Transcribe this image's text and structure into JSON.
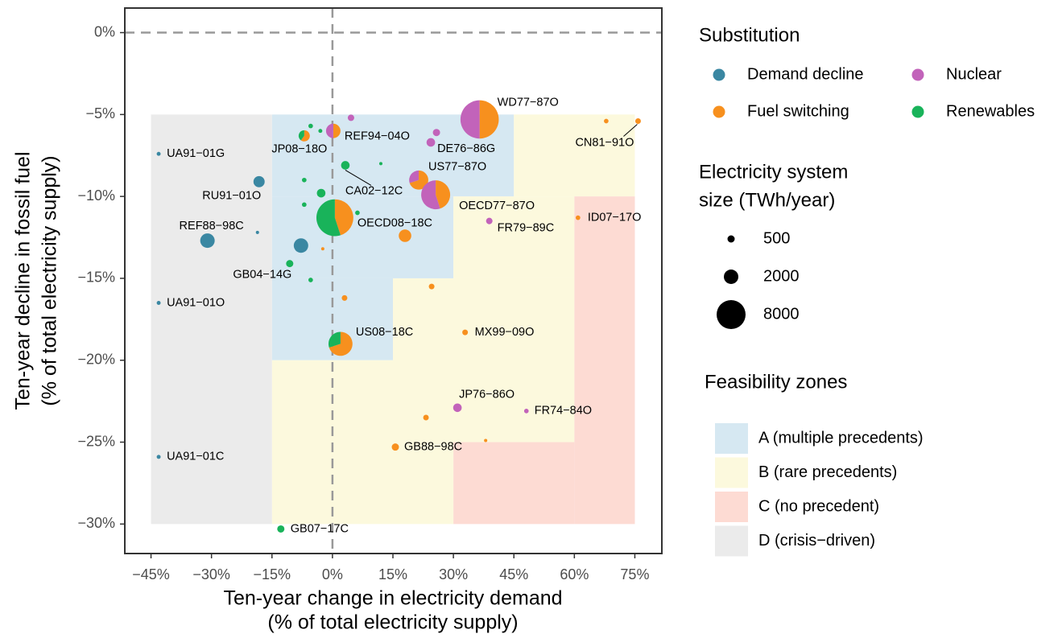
{
  "chart_data": {
    "type": "scatter",
    "x_label": [
      "Ten-year change in electricity demand",
      "(% of total electricity supply)"
    ],
    "y_label": [
      "Ten-year decline in fossil fuel",
      "(% of total electricity supply)"
    ],
    "xlim": [
      -51.5,
      81.7
    ],
    "ylim": [
      -31.8,
      1.5
    ],
    "xticks": [
      {
        "value": -45,
        "label": "−45%"
      },
      {
        "value": -30,
        "label": "−30%"
      },
      {
        "value": -15,
        "label": "−15%"
      },
      {
        "value": 0,
        "label": "0%"
      },
      {
        "value": 15,
        "label": "15%"
      },
      {
        "value": 30,
        "label": "30%"
      },
      {
        "value": 45,
        "label": "45%"
      },
      {
        "value": 60,
        "label": "60%"
      },
      {
        "value": 75,
        "label": "75%"
      }
    ],
    "yticks": [
      {
        "value": 0,
        "label": "0%"
      },
      {
        "value": -5,
        "label": "−5%"
      },
      {
        "value": -10,
        "label": "−10%"
      },
      {
        "value": -15,
        "label": "−15%"
      },
      {
        "value": -20,
        "label": "−20%"
      },
      {
        "value": -25,
        "label": "−25%"
      },
      {
        "value": -30,
        "label": "−30%"
      }
    ],
    "substitution_title": "Substitution",
    "substitution": [
      {
        "name": "Demand decline",
        "color": "#3a87a2"
      },
      {
        "name": "Fuel switching",
        "color": "#f7901e"
      },
      {
        "name": "Nuclear",
        "color": "#c263ba"
      },
      {
        "name": "Renewables",
        "color": "#19b35a"
      }
    ],
    "size_title": [
      "Electricity system",
      "size (TWh/year)"
    ],
    "size_legend": [
      500,
      2000,
      8000
    ],
    "zones_title": "Feasibility zones",
    "zones": [
      {
        "name": "A (multiple precedents)",
        "color": "#d6e8f2",
        "rects": [
          [
            -15,
            45,
            -10,
            -5
          ],
          [
            -15,
            30,
            -15,
            -10
          ],
          [
            -15,
            15,
            -20,
            -15
          ]
        ]
      },
      {
        "name": "B (rare precedents)",
        "color": "#fcf9dd",
        "rects": [
          [
            45,
            75,
            -10,
            -5
          ],
          [
            30,
            60,
            -15,
            -10
          ],
          [
            15,
            60,
            -25,
            -15
          ],
          [
            -15,
            30,
            -30,
            -20
          ]
        ]
      },
      {
        "name": "C (no precedent)",
        "color": "#fddbd3",
        "rects": [
          [
            60,
            75,
            -30,
            -10
          ],
          [
            30,
            60,
            -30,
            -25
          ]
        ]
      },
      {
        "name": "D (crisis−driven)",
        "color": "#ebebeb",
        "rects": [
          [
            -45,
            -15,
            -30,
            -5
          ]
        ]
      }
    ],
    "points": [
      {
        "label": "UA91−01G",
        "x": -43.1,
        "y": -7.4,
        "size": 150,
        "shares": [
          1,
          0,
          0,
          0
        ]
      },
      {
        "label": "UA91−01O",
        "x": -43.1,
        "y": -16.5,
        "size": 150,
        "shares": [
          1,
          0,
          0,
          0
        ]
      },
      {
        "label": "UA91−01C",
        "x": -43.1,
        "y": -25.9,
        "size": 150,
        "shares": [
          1,
          0,
          0,
          0
        ]
      },
      {
        "label": "RU91−01O",
        "x": -18.2,
        "y": -9.1,
        "size": 1200,
        "shares": [
          1,
          0,
          0,
          0
        ]
      },
      {
        "label": "REF88−98C",
        "x": -31,
        "y": -12.7,
        "size": 2000,
        "shares": [
          1,
          0,
          0,
          0
        ]
      },
      {
        "label": null,
        "x": -18.6,
        "y": -12.2,
        "size": 100,
        "shares": [
          1,
          0,
          0,
          0
        ]
      },
      {
        "label": null,
        "x": -7.8,
        "y": -13.0,
        "size": 2000,
        "shares": [
          1,
          0,
          0,
          0
        ]
      },
      {
        "label": null,
        "x": -5.4,
        "y": -5.7,
        "size": 200,
        "shares": [
          0,
          0,
          0,
          1
        ]
      },
      {
        "label": null,
        "x": -3.0,
        "y": -6.0,
        "size": 150,
        "shares": [
          0,
          0,
          0,
          1
        ]
      },
      {
        "label": "JP08−18O",
        "x": -7,
        "y": -6.3,
        "size": 1200,
        "shares": [
          0,
          0.6,
          0,
          0.4
        ]
      },
      {
        "label": null,
        "x": -7,
        "y": -9.0,
        "size": 200,
        "shares": [
          0,
          0,
          0,
          1
        ]
      },
      {
        "label": null,
        "x": -2.8,
        "y": -9.8,
        "size": 700,
        "shares": [
          0,
          0,
          0,
          1
        ]
      },
      {
        "label": null,
        "x": -7,
        "y": -10.5,
        "size": 200,
        "shares": [
          0,
          0,
          0,
          1
        ]
      },
      {
        "label": "GB04−14G",
        "x": -10.6,
        "y": -14.1,
        "size": 500,
        "shares": [
          0,
          0,
          0,
          1
        ]
      },
      {
        "label": null,
        "x": -5.4,
        "y": -15.1,
        "size": 200,
        "shares": [
          0,
          0,
          0,
          1
        ]
      },
      {
        "label": "CA02−12C",
        "x": 3.2,
        "y": -8.1,
        "size": 700,
        "shares": [
          0,
          0,
          0,
          1
        ]
      },
      {
        "label": null,
        "x": 12,
        "y": -8.0,
        "size": 100,
        "shares": [
          0,
          0,
          0,
          1
        ]
      },
      {
        "label": null,
        "x": 6.2,
        "y": -11.0,
        "size": 200,
        "shares": [
          0,
          0,
          0,
          1
        ]
      },
      {
        "label": null,
        "x": -2.4,
        "y": -13.2,
        "size": 100,
        "shares": [
          0,
          1,
          0,
          0
        ]
      },
      {
        "label": "REF94−04O",
        "x": 0.2,
        "y": -6.0,
        "size": 2000,
        "shares": [
          0,
          0.5,
          0.5,
          0
        ]
      },
      {
        "label": null,
        "x": 4.6,
        "y": -5.2,
        "size": 400,
        "shares": [
          0,
          0,
          1,
          0
        ]
      },
      {
        "label": "OECD08−18C",
        "x": 0.6,
        "y": -11.3,
        "size": 13000,
        "shares": [
          0,
          0.45,
          0,
          0.55
        ]
      },
      {
        "label": "US77−87O",
        "x": 21.4,
        "y": -9.0,
        "size": 3500,
        "shares": [
          0,
          0.7,
          0.3,
          0
        ]
      },
      {
        "label": "OECD77−87O",
        "x": 25.6,
        "y": -9.9,
        "size": 8000,
        "shares": [
          0,
          0.45,
          0.55,
          0
        ]
      },
      {
        "label": "WD77−87O",
        "x": 36.5,
        "y": -5.3,
        "size": 14000,
        "shares": [
          0,
          0.5,
          0.5,
          0
        ]
      },
      {
        "label": "DE76−86G",
        "x": 24.4,
        "y": -6.7,
        "size": 700,
        "shares": [
          0,
          0,
          1,
          0
        ]
      },
      {
        "label": null,
        "x": 25.8,
        "y": -6.1,
        "size": 500,
        "shares": [
          0,
          0,
          1,
          0
        ]
      },
      {
        "label": "FR79−89C",
        "x": 38.9,
        "y": -11.5,
        "size": 400,
        "shares": [
          0,
          0,
          1,
          0
        ]
      },
      {
        "label": "CN81−91O",
        "x": 75.8,
        "y": -5.4,
        "size": 300,
        "shares": [
          0,
          1,
          0,
          0
        ]
      },
      {
        "label": null,
        "x": 67.9,
        "y": -5.4,
        "size": 200,
        "shares": [
          0,
          1,
          0,
          0
        ]
      },
      {
        "label": "ID07−17O",
        "x": 60.9,
        "y": -11.3,
        "size": 200,
        "shares": [
          0,
          1,
          0,
          0
        ]
      },
      {
        "label": null,
        "x": 18,
        "y": -12.4,
        "size": 1500,
        "shares": [
          0,
          1,
          0,
          0
        ]
      },
      {
        "label": null,
        "x": 24.6,
        "y": -15.5,
        "size": 300,
        "shares": [
          0,
          1,
          0,
          0
        ]
      },
      {
        "label": null,
        "x": 3,
        "y": -16.2,
        "size": 300,
        "shares": [
          0,
          1,
          0,
          0
        ]
      },
      {
        "label": "MX99−09O",
        "x": 32.9,
        "y": -18.3,
        "size": 300,
        "shares": [
          0,
          1,
          0,
          0
        ]
      },
      {
        "label": "US08−18C",
        "x": 2,
        "y": -19.0,
        "size": 5500,
        "shares": [
          0,
          0.7,
          0,
          0.3
        ]
      },
      {
        "label": "JP76−86O",
        "x": 31,
        "y": -22.9,
        "size": 700,
        "shares": [
          0,
          0,
          1,
          0
        ]
      },
      {
        "label": "FR74−84O",
        "x": 48.1,
        "y": -23.1,
        "size": 200,
        "shares": [
          0,
          0,
          1,
          0
        ]
      },
      {
        "label": null,
        "x": 23.2,
        "y": -23.5,
        "size": 300,
        "shares": [
          0,
          1,
          0,
          0
        ]
      },
      {
        "label": null,
        "x": 38,
        "y": -24.9,
        "size": 100,
        "shares": [
          0,
          1,
          0,
          0
        ]
      },
      {
        "label": "GB88−98C",
        "x": 15.6,
        "y": -25.3,
        "size": 500,
        "shares": [
          0,
          1,
          0,
          0
        ]
      },
      {
        "label": "GB07−17C",
        "x": -12.8,
        "y": -30.3,
        "size": 500,
        "shares": [
          0,
          0,
          0,
          1
        ]
      }
    ]
  }
}
